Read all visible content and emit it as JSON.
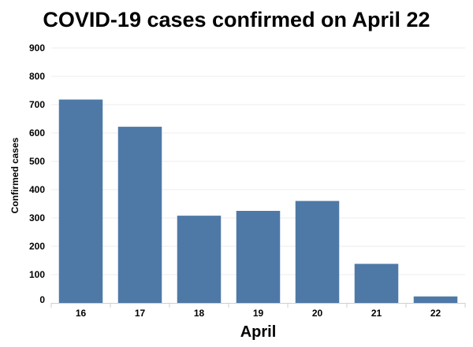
{
  "chart_data": {
    "type": "bar",
    "title": "COVID-19 cases confirmed on April 22",
    "xlabel": "April",
    "ylabel": "Confirmed cases",
    "categories": [
      "16",
      "17",
      "18",
      "19",
      "20",
      "21",
      "22"
    ],
    "values": [
      718,
      622,
      308,
      325,
      360,
      138,
      23
    ],
    "ylim": [
      0,
      900
    ],
    "yticks": [
      0,
      100,
      200,
      300,
      400,
      500,
      600,
      700,
      800,
      900
    ],
    "grid": true,
    "bar_color": "#4e79a7",
    "grid_color": "#eeeeee"
  }
}
